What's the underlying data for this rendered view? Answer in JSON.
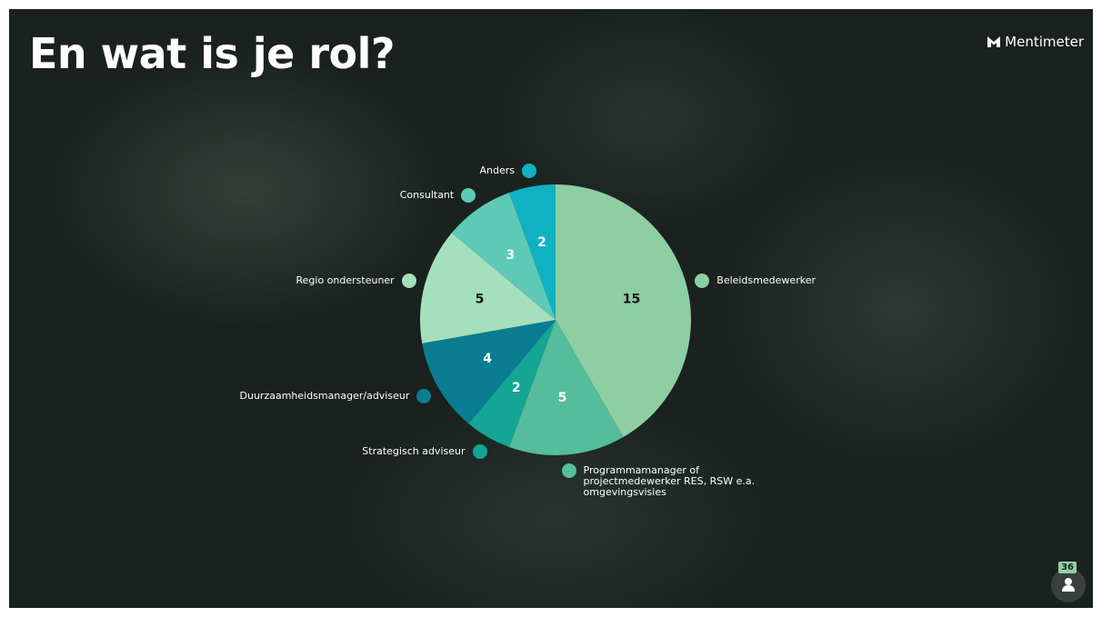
{
  "chart_data": {
    "type": "pie",
    "title": "En wat is je rol?",
    "categories": [
      "Beleidsmedewerker",
      "Programmamanager of projectmedewerker RES, RSW e.a. omgevingsvisies",
      "Strategisch adviseur",
      "Duurzaamheidsmanager/adviseur",
      "Regio ondersteuner",
      "Consultant",
      "Anders"
    ],
    "values": [
      15,
      5,
      2,
      4,
      5,
      3,
      2
    ],
    "colors": [
      "#8dcea3",
      "#55bd9c",
      "#14a594",
      "#0a7d93",
      "#a5e0bc",
      "#5ccab6",
      "#10b2c2"
    ]
  },
  "brand": "Mentimeter",
  "participants": 36
}
